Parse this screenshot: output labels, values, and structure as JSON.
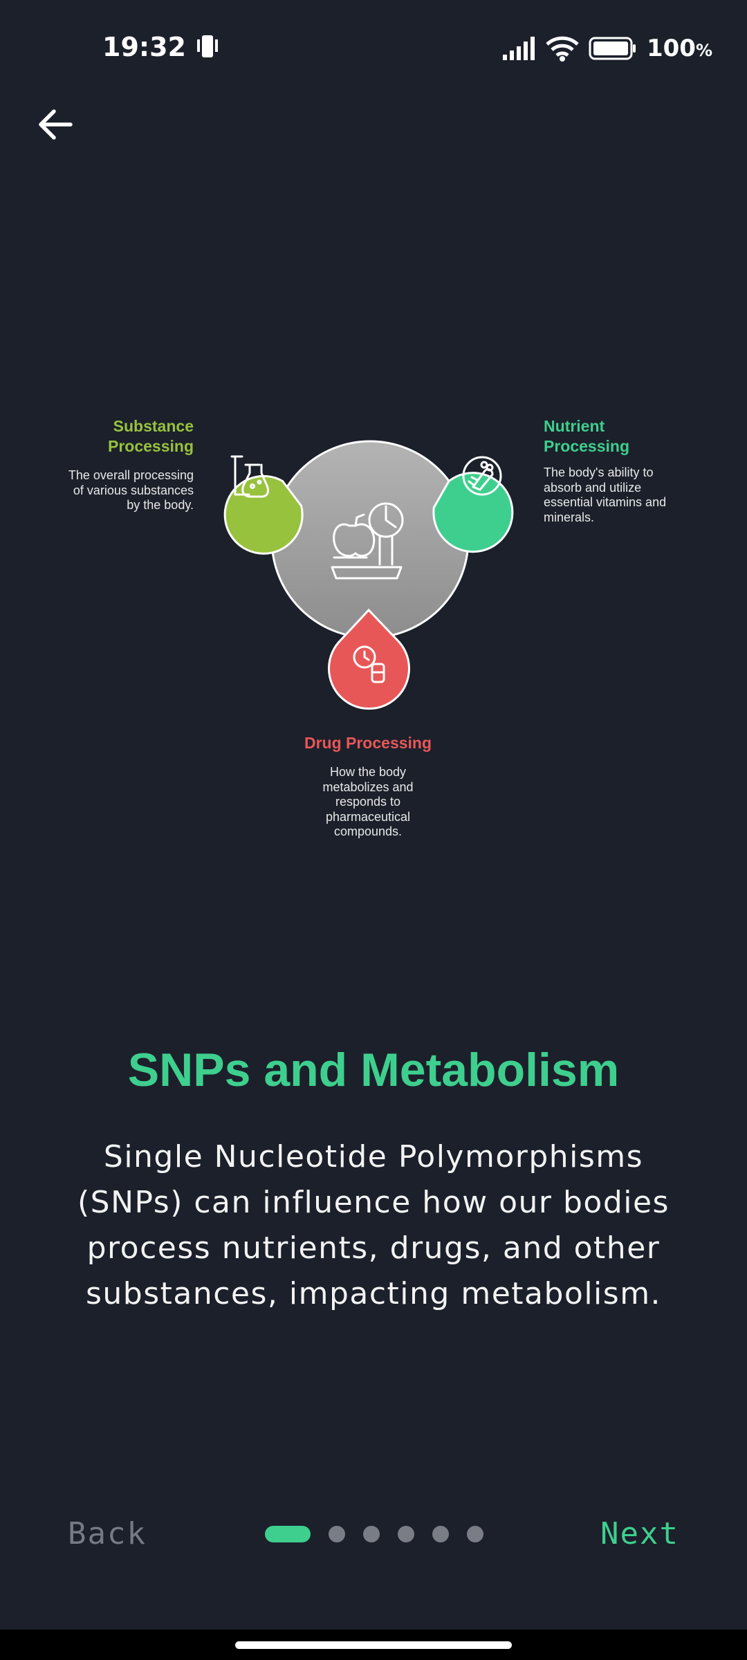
{
  "status": {
    "time": "19:32",
    "battery": "100",
    "battery_unit": "%"
  },
  "diagram": {
    "center_icon": "scale-apple-icon",
    "segments": [
      {
        "key": "substance",
        "title_line1": "Substance",
        "title_line2": "Processing",
        "desc": [
          "The overall processing",
          "of various substances",
          "by the body."
        ],
        "color": "#97c23d",
        "icon": "flask-icon"
      },
      {
        "key": "nutrient",
        "title_line1": "Nutrient",
        "title_line2": "Processing",
        "desc": [
          "The body's ability to",
          "absorb and utilize",
          "essential vitamins and",
          "minerals."
        ],
        "color": "#3ecf8e",
        "icon": "vegetable-icon"
      },
      {
        "key": "drug",
        "title_line1": "Drug Processing",
        "title_line2": "",
        "desc": [
          "How the body",
          "metabolizes and",
          "responds to",
          "pharmaceutical",
          "compounds."
        ],
        "color": "#e85757",
        "icon": "pill-clock-icon"
      }
    ]
  },
  "content": {
    "title": "SNPs and Metabolism",
    "body": "Single Nucleotide Polymorphisms (SNPs) can influence how our bodies process nutrients, drugs, and other substances, impacting metabolism."
  },
  "footer": {
    "back_label": "Back",
    "next_label": "Next",
    "total_pages": 6,
    "current_page": 1
  },
  "colors": {
    "background": "#1c202b",
    "accent": "#3ecf8e"
  }
}
